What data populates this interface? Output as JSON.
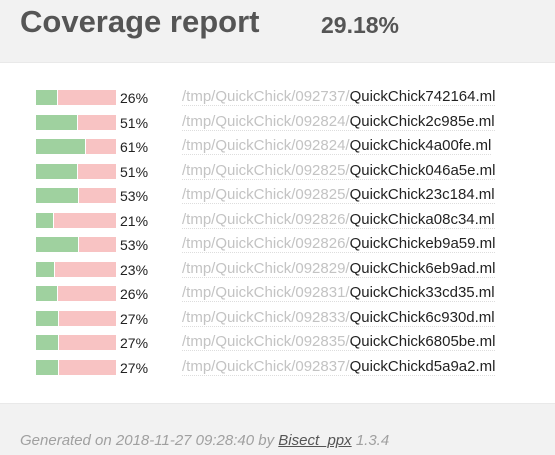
{
  "header": {
    "title": "Coverage report",
    "overall_coverage": "29.18%"
  },
  "colors": {
    "covered": "#9fd19f",
    "uncovered": "#f8c3c3",
    "header_background": "#f2f2f2"
  },
  "files": [
    {
      "coverage": 0.26,
      "percent": "26%",
      "dir": "/tmp/QuickChick/092737/",
      "name": "QuickChick742164.ml"
    },
    {
      "coverage": 0.51,
      "percent": "51%",
      "dir": "/tmp/QuickChick/092824/",
      "name": "QuickChick2c985e.ml"
    },
    {
      "coverage": 0.61,
      "percent": "61%",
      "dir": "/tmp/QuickChick/092824/",
      "name": "QuickChick4a00fe.ml"
    },
    {
      "coverage": 0.51,
      "percent": "51%",
      "dir": "/tmp/QuickChick/092825/",
      "name": "QuickChick046a5e.ml"
    },
    {
      "coverage": 0.53,
      "percent": "53%",
      "dir": "/tmp/QuickChick/092825/",
      "name": "QuickChick23c184.ml"
    },
    {
      "coverage": 0.21,
      "percent": "21%",
      "dir": "/tmp/QuickChick/092826/",
      "name": "QuickChicka08c34.ml"
    },
    {
      "coverage": 0.53,
      "percent": "53%",
      "dir": "/tmp/QuickChick/092826/",
      "name": "QuickChickeb9a59.ml"
    },
    {
      "coverage": 0.23,
      "percent": "23%",
      "dir": "/tmp/QuickChick/092829/",
      "name": "QuickChick6eb9ad.ml"
    },
    {
      "coverage": 0.26,
      "percent": "26%",
      "dir": "/tmp/QuickChick/092831/",
      "name": "QuickChick33cd35.ml"
    },
    {
      "coverage": 0.27,
      "percent": "27%",
      "dir": "/tmp/QuickChick/092833/",
      "name": "QuickChick6c930d.ml"
    },
    {
      "coverage": 0.27,
      "percent": "27%",
      "dir": "/tmp/QuickChick/092835/",
      "name": "QuickChick6805be.ml"
    },
    {
      "coverage": 0.27,
      "percent": "27%",
      "dir": "/tmp/QuickChick/092837/",
      "name": "QuickChickd5a9a2.ml"
    }
  ],
  "footer": {
    "prefix": "Generated on 2018-11-27 09:28:40 by",
    "tool_name": "Bisect_ppx",
    "version": "1.3.4"
  }
}
